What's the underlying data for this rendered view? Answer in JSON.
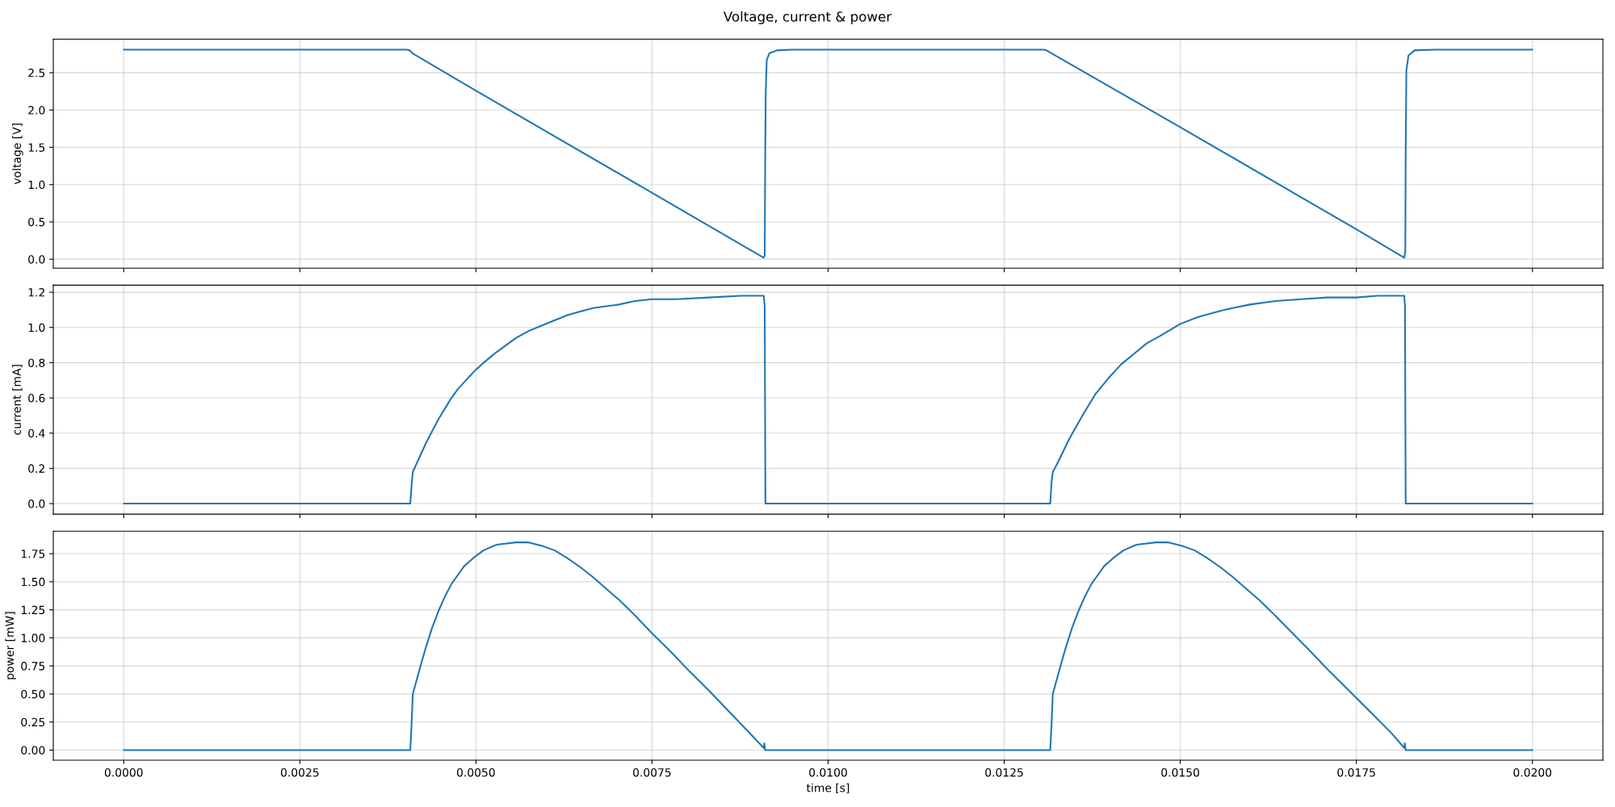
{
  "chart_data": [
    {
      "type": "line",
      "title": "Voltage, current & power",
      "ylabel": "voltage [V]",
      "color": "#1f77b4",
      "grid": true,
      "tick_labels": "y",
      "x": [
        0,
        0.004017,
        0.00406,
        0.0041,
        0.005,
        0.0075,
        0.009086,
        0.0091,
        0.009108,
        0.009115,
        0.009129,
        0.009166,
        0.009276,
        0.009495,
        0.013063,
        0.0131,
        0.013173,
        0.015,
        0.0175,
        0.01818,
        0.018195,
        0.0182,
        0.01821,
        0.01824,
        0.018326,
        0.01862,
        0.02
      ],
      "values": [
        2.81,
        2.81,
        2.8,
        2.76,
        2.26,
        0.89,
        0.02,
        0.05,
        1.5,
        2.25,
        2.67,
        2.76,
        2.8,
        2.81,
        2.81,
        2.8,
        2.76,
        1.77,
        0.4,
        0.02,
        0.11,
        1.42,
        2.53,
        2.73,
        2.8,
        2.81,
        2.81
      ],
      "xlim": [
        -0.001,
        0.021
      ],
      "ylim": [
        -0.12,
        2.95
      ],
      "xticks": [
        {
          "value": 0,
          "label": null
        },
        {
          "value": 0.0025,
          "label": null
        },
        {
          "value": 0.005,
          "label": null
        },
        {
          "value": 0.0075,
          "label": null
        },
        {
          "value": 0.01,
          "label": null
        },
        {
          "value": 0.0125,
          "label": null
        },
        {
          "value": 0.015,
          "label": null
        },
        {
          "value": 0.0175,
          "label": null
        },
        {
          "value": 0.02,
          "label": null
        }
      ],
      "yticks": [
        {
          "value": 0,
          "label": "0.0"
        },
        0.5,
        {
          "value": 1,
          "label": "1.0"
        },
        1.5,
        {
          "value": 2,
          "label": "2.0"
        },
        2.5
      ]
    },
    {
      "type": "line",
      "ylabel": "current [mA]",
      "color": "#1f77b4",
      "grid": true,
      "tick_labels": "y",
      "x": [
        0,
        0.004068,
        0.00409,
        0.004104,
        0.00415,
        0.004196,
        0.004241,
        0.004287,
        0.004378,
        0.00447,
        0.004561,
        0.004653,
        0.004744,
        0.004835,
        0.004927,
        0.005,
        0.00511,
        0.005201,
        0.005293,
        0.00543,
        0.005567,
        0.00575,
        0.005932,
        0.006115,
        0.006298,
        0.006481,
        0.006664,
        0.006846,
        0.007029,
        0.007258,
        0.0075,
        0.007852,
        0.008309,
        0.008766,
        0.009086,
        0.0091,
        0.00911,
        0.013154,
        0.013172,
        0.01319,
        0.013245,
        0.013428,
        0.013611,
        0.013793,
        0.013976,
        0.014159,
        0.014342,
        0.014525,
        0.014707,
        0.015,
        0.015256,
        0.015622,
        0.015987,
        0.016353,
        0.016718,
        0.017084,
        0.0175,
        0.0178,
        0.01818,
        0.01819,
        0.0182,
        0.02
      ],
      "values": [
        0,
        0,
        0.12,
        0.18,
        0.22,
        0.26,
        0.3,
        0.34,
        0.41,
        0.48,
        0.54,
        0.6,
        0.65,
        0.69,
        0.73,
        0.76,
        0.8,
        0.83,
        0.86,
        0.9,
        0.94,
        0.98,
        1.01,
        1.04,
        1.07,
        1.09,
        1.11,
        1.12,
        1.13,
        1.15,
        1.16,
        1.16,
        1.17,
        1.18,
        1.18,
        1.12,
        0,
        0,
        0.12,
        0.18,
        0.22,
        0.37,
        0.5,
        0.62,
        0.71,
        0.79,
        0.85,
        0.91,
        0.95,
        1.02,
        1.06,
        1.1,
        1.13,
        1.15,
        1.16,
        1.17,
        1.17,
        1.18,
        1.18,
        1.12,
        0,
        0
      ],
      "xlim": [
        -0.001,
        0.021
      ],
      "ylim": [
        -0.06,
        1.24
      ],
      "xticks": [
        {
          "value": 0,
          "label": null
        },
        {
          "value": 0.0025,
          "label": null
        },
        {
          "value": 0.005,
          "label": null
        },
        {
          "value": 0.0075,
          "label": null
        },
        {
          "value": 0.01,
          "label": null
        },
        {
          "value": 0.0125,
          "label": null
        },
        {
          "value": 0.015,
          "label": null
        },
        {
          "value": 0.0175,
          "label": null
        },
        {
          "value": 0.02,
          "label": null
        }
      ],
      "yticks": [
        {
          "value": 0,
          "label": "0.0"
        },
        0.2,
        0.4,
        0.6,
        0.8,
        {
          "value": 1,
          "label": "1.0"
        },
        1.2
      ]
    },
    {
      "type": "line",
      "xlabel": "time [s]",
      "ylabel": "power [mW]",
      "color": "#1f77b4",
      "grid": true,
      "x": [
        0,
        0.004068,
        0.004086,
        0.004104,
        0.004196,
        0.004287,
        0.004378,
        0.00447,
        0.004561,
        0.004653,
        0.004744,
        0.004835,
        0.005,
        0.00511,
        0.005293,
        0.005567,
        0.00575,
        0.005932,
        0.006115,
        0.006298,
        0.006481,
        0.006664,
        0.006846,
        0.007029,
        0.007212,
        0.0075,
        0.00776,
        0.008035,
        0.008309,
        0.008583,
        0.008857,
        0.009086,
        0.009095,
        0.009104,
        0.013154,
        0.013172,
        0.01319,
        0.013282,
        0.013373,
        0.013464,
        0.013556,
        0.013647,
        0.013739,
        0.01383,
        0.013921,
        0.014086,
        0.014196,
        0.014378,
        0.014653,
        0.014835,
        0.015018,
        0.015201,
        0.015384,
        0.015567,
        0.015749,
        0.015932,
        0.016115,
        0.016298,
        0.016581,
        0.016846,
        0.017121,
        0.017395,
        0.0177,
        0.018,
        0.01818,
        0.018187,
        0.0182,
        0.02
      ],
      "values": [
        0,
        0,
        0.22,
        0.5,
        0.71,
        0.91,
        1.09,
        1.24,
        1.37,
        1.48,
        1.56,
        1.64,
        1.73,
        1.78,
        1.83,
        1.85,
        1.85,
        1.82,
        1.78,
        1.71,
        1.63,
        1.54,
        1.44,
        1.34,
        1.23,
        1.04,
        0.88,
        0.7,
        0.53,
        0.35,
        0.17,
        0.02,
        0.06,
        0,
        0,
        0.22,
        0.5,
        0.71,
        0.91,
        1.09,
        1.24,
        1.37,
        1.48,
        1.56,
        1.64,
        1.73,
        1.78,
        1.83,
        1.85,
        1.85,
        1.82,
        1.78,
        1.71,
        1.63,
        1.54,
        1.44,
        1.34,
        1.23,
        1.05,
        0.88,
        0.7,
        0.53,
        0.34,
        0.15,
        0.02,
        0.06,
        0,
        0
      ],
      "xlim": [
        -0.001,
        0.021
      ],
      "ylim": [
        -0.09,
        1.95
      ],
      "xticks": [
        {
          "value": 0,
          "label": "0.0000"
        },
        {
          "value": 0.0025,
          "label": "0.0025"
        },
        {
          "value": 0.005,
          "label": "0.0050"
        },
        {
          "value": 0.0075,
          "label": "0.0075"
        },
        {
          "value": 0.01,
          "label": "0.0100"
        },
        {
          "value": 0.0125,
          "label": "0.0125"
        },
        {
          "value": 0.015,
          "label": "0.0150"
        },
        {
          "value": 0.0175,
          "label": "0.0175"
        },
        {
          "value": 0.02,
          "label": "0.0200"
        }
      ],
      "yticks": [
        {
          "value": 0,
          "label": "0.00"
        },
        0.25,
        {
          "value": 0.5,
          "label": "0.50"
        },
        0.75,
        {
          "value": 1,
          "label": "1.00"
        },
        1.25,
        {
          "value": 1.5,
          "label": "1.50"
        },
        1.75
      ]
    }
  ]
}
